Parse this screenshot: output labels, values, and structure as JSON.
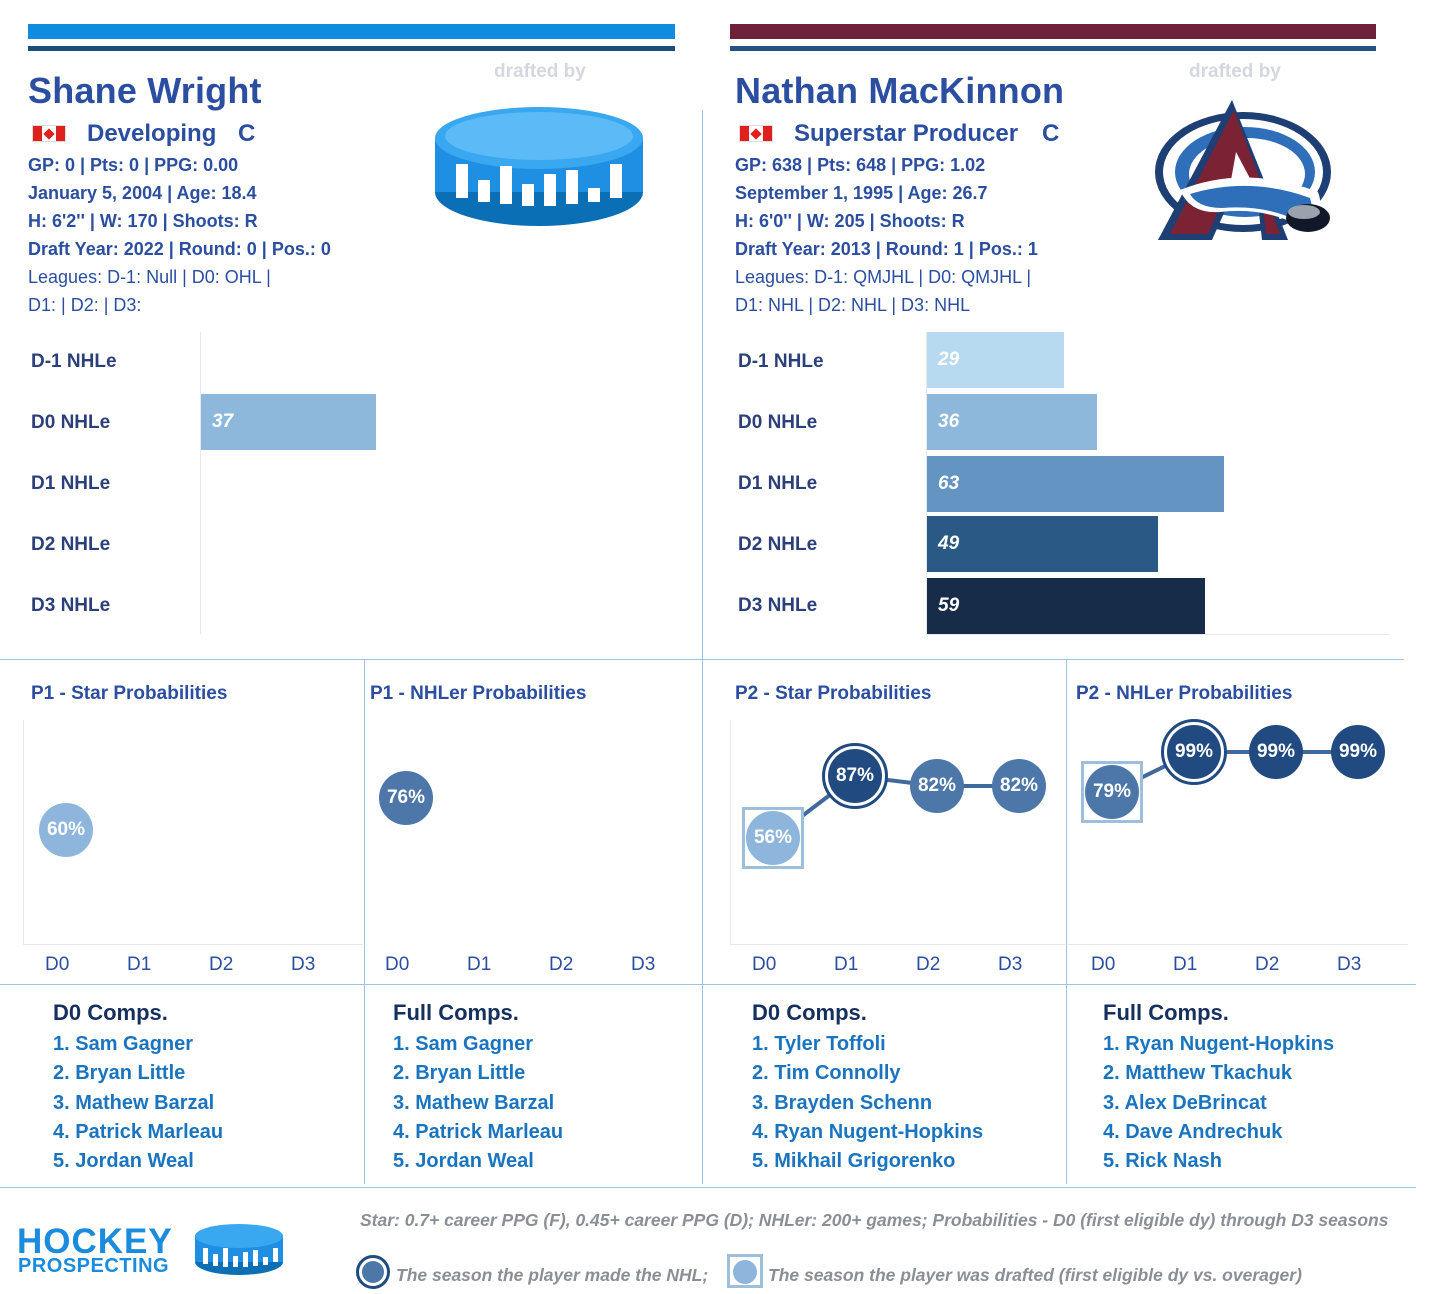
{
  "colors": {
    "p1_primary": "#0f8be0",
    "p1_secondary": "#1d4e7a",
    "p2_primary": "#6e2239",
    "p2_secondary": "#26507e",
    "title_blue": "#2b4ea0",
    "comp_link": "#1a74bf",
    "divider": "#9fc4e3"
  },
  "player1": {
    "name": "Shane Wright",
    "drafted_by": "drafted by",
    "team_logo": "hockey-prospecting-puck-icon",
    "country": "canada-flag-icon",
    "type": "Developing",
    "position": "C",
    "line1": "GP: 0 | Pts: 0 | PPG: 0.00",
    "line2": "January 5, 2004 | Age: 18.4",
    "line3": "H: 6'2'' | W: 170 | Shoots: R",
    "line4": "Draft Year: 2022 | Round: 0 | Pos.: 0",
    "line5": "Leagues: D-1: Null | D0: OHL |",
    "line6": "D1:  | D2:  | D3:"
  },
  "player2": {
    "name": "Nathan MacKinnon",
    "drafted_by": "drafted by",
    "team_logo": "colorado-avalanche-logo-icon",
    "country": "canada-flag-icon",
    "type": "Superstar Producer",
    "position": "C",
    "line1": "GP: 638 | Pts: 648 | PPG: 1.02",
    "line2": "September 1, 1995 | Age: 26.7",
    "line3": "H: 6'0'' | W: 205 | Shoots: R",
    "line4": "Draft Year: 2013 | Round: 1 | Pos.: 1",
    "line5": "Leagues: D-1: QMJHL | D0: QMJHL |",
    "line6": "D1: NHL | D2: NHL | D3: NHL"
  },
  "nhle_labels": [
    "D-1 NHLe",
    "D0 NHLe",
    "D1 NHLe",
    "D2 NHLe",
    "D3 NHLe"
  ],
  "chart_data": [
    {
      "type": "bar",
      "orientation": "horizontal",
      "title": "",
      "categories": [
        "D-1 NHLe",
        "D0 NHLe",
        "D1 NHLe",
        "D2 NHLe",
        "D3 NHLe"
      ],
      "values": [
        null,
        37,
        null,
        null,
        null
      ],
      "xlim": [
        0,
        100
      ],
      "data_labels": [
        "",
        "37",
        "",
        "",
        ""
      ]
    },
    {
      "type": "bar",
      "orientation": "horizontal",
      "title": "",
      "categories": [
        "D-1 NHLe",
        "D0 NHLe",
        "D1 NHLe",
        "D2 NHLe",
        "D3 NHLe"
      ],
      "values": [
        29,
        36,
        63,
        49,
        59
      ],
      "xlim": [
        0,
        100
      ],
      "data_labels": [
        "29",
        "36",
        "63",
        "49",
        "59"
      ]
    },
    {
      "type": "line",
      "title": "P1 - Star Probabilities",
      "x": [
        "D0",
        "D1",
        "D2",
        "D3"
      ],
      "values": [
        60,
        null,
        null,
        null
      ],
      "labels": [
        "60%",
        "",
        "",
        ""
      ],
      "ylim": [
        0,
        100
      ]
    },
    {
      "type": "line",
      "title": "P1 - NHLer Probabilities",
      "x": [
        "D0",
        "D1",
        "D2",
        "D3"
      ],
      "values": [
        76,
        null,
        null,
        null
      ],
      "labels": [
        "76%",
        "",
        "",
        ""
      ],
      "ylim": [
        0,
        100
      ]
    },
    {
      "type": "line",
      "title": "P2 - Star Probabilities",
      "x": [
        "D0",
        "D1",
        "D2",
        "D3"
      ],
      "values": [
        56,
        87,
        82,
        82
      ],
      "labels": [
        "56%",
        "87%",
        "82%",
        "82%"
      ],
      "drafted_index": 0,
      "made_nhl_index": 1,
      "ylim": [
        0,
        100
      ]
    },
    {
      "type": "line",
      "title": "P2 - NHLer Probabilities",
      "x": [
        "D0",
        "D1",
        "D2",
        "D3"
      ],
      "values": [
        79,
        99,
        99,
        99
      ],
      "labels": [
        "79%",
        "99%",
        "99%",
        "99%"
      ],
      "drafted_index": 0,
      "made_nhl_index": 1,
      "ylim": [
        0,
        100
      ]
    }
  ],
  "comps": [
    {
      "title": "D0 Comps.",
      "items": [
        "1. Sam Gagner",
        "2. Bryan Little",
        "3. Mathew Barzal",
        "4. Patrick Marleau",
        "5. Jordan Weal"
      ]
    },
    {
      "title": "Full Comps.",
      "items": [
        "1. Sam Gagner",
        "2. Bryan Little",
        "3. Mathew Barzal",
        "4. Patrick Marleau",
        "5. Jordan Weal"
      ]
    },
    {
      "title": "D0 Comps.",
      "items": [
        "1. Tyler Toffoli",
        "2. Tim Connolly",
        "3. Brayden Schenn",
        "4. Ryan Nugent-Hopkins",
        "5. Mikhail Grigorenko"
      ]
    },
    {
      "title": "Full Comps.",
      "items": [
        "1. Ryan Nugent-Hopkins",
        "2. Matthew Tkachuk",
        "3. Alex DeBrincat",
        "4. Dave Andrechuk",
        "5. Rick Nash"
      ]
    }
  ],
  "footer": {
    "logo_line1": "HOCKEY",
    "logo_line2": "PROSPECTING",
    "logo_icon": "puck-icon",
    "definition": "Star: 0.7+ career PPG (F), 0.45+ career PPG (D); NHLer: 200+ games; Probabilities - D0 (first eligible dy) through D3 seasons",
    "legend_nhl": "The season the player made the NHL;",
    "legend_drafted": "The season the player was drafted (first eligible dy vs. overager)"
  }
}
